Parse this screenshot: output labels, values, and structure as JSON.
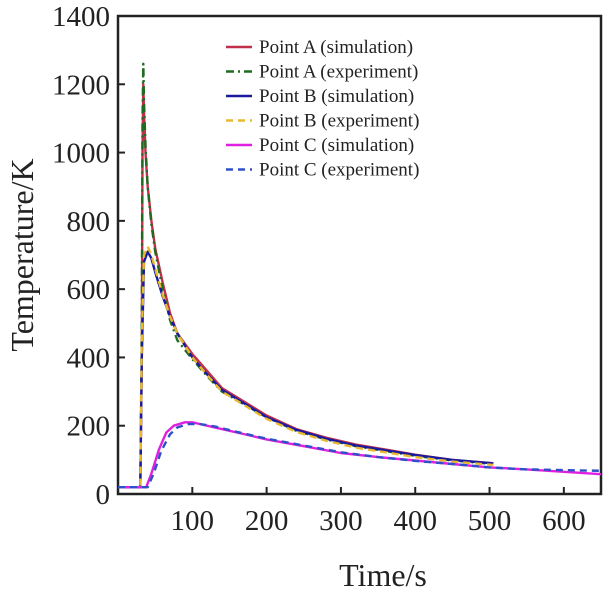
{
  "chart_data": {
    "type": "line",
    "title": "",
    "xlabel": "Time/s",
    "ylabel": "Temperature/K",
    "xlim": [
      0,
      650
    ],
    "ylim": [
      0,
      1400
    ],
    "xticks": [
      100,
      200,
      300,
      400,
      500,
      600
    ],
    "yticks": [
      0,
      200,
      400,
      600,
      800,
      1000,
      1200,
      1400
    ],
    "grid": false,
    "legend_position": "top-right",
    "series": [
      {
        "name": "Point A (simulation)",
        "color": "#c0304a",
        "dash": "solid",
        "x": [
          0,
          30,
          32,
          33,
          34,
          35,
          37,
          40,
          45,
          50,
          60,
          70,
          80,
          100,
          120,
          140,
          170,
          200,
          240,
          280,
          320,
          360,
          400,
          450,
          505
        ],
        "y": [
          20,
          20,
          400,
          1000,
          1200,
          1120,
          1000,
          900,
          800,
          720,
          620,
          530,
          470,
          410,
          360,
          310,
          270,
          230,
          190,
          165,
          145,
          130,
          115,
          100,
          90
        ]
      },
      {
        "name": "Point A (experiment)",
        "color": "#1f6b1f",
        "dash": "dashdot",
        "x": [
          0,
          30,
          32,
          33,
          34,
          35,
          37,
          40,
          45,
          50,
          60,
          70,
          80,
          100,
          120,
          140,
          170,
          200,
          240,
          280,
          320,
          360,
          400,
          450,
          505
        ],
        "y": [
          20,
          20,
          500,
          1100,
          1260,
          1150,
          1020,
          900,
          790,
          710,
          600,
          510,
          450,
          395,
          345,
          300,
          262,
          225,
          185,
          160,
          140,
          126,
          112,
          98,
          88
        ]
      },
      {
        "name": "Point B (simulation)",
        "color": "#1a1aa0",
        "dash": "solid",
        "x": [
          0,
          30,
          32,
          35,
          40,
          45,
          50,
          60,
          70,
          80,
          100,
          120,
          140,
          170,
          200,
          240,
          280,
          320,
          360,
          400,
          450,
          505
        ],
        "y": [
          20,
          20,
          400,
          680,
          710,
          690,
          650,
          580,
          520,
          470,
          400,
          350,
          305,
          265,
          225,
          188,
          162,
          142,
          128,
          114,
          100,
          90
        ]
      },
      {
        "name": "Point B (experiment)",
        "color": "#e8b830",
        "dash": "dashed",
        "x": [
          0,
          30,
          32,
          35,
          40,
          45,
          50,
          60,
          70,
          80,
          100,
          120,
          140,
          170,
          200,
          240,
          280,
          320,
          360,
          400,
          450,
          505
        ],
        "y": [
          20,
          20,
          450,
          700,
          725,
          700,
          660,
          585,
          520,
          470,
          400,
          348,
          300,
          260,
          220,
          182,
          156,
          136,
          122,
          108,
          95,
          85
        ]
      },
      {
        "name": "Point C (simulation)",
        "color": "#e020e0",
        "dash": "solid",
        "x": [
          0,
          38,
          45,
          55,
          65,
          75,
          90,
          100,
          110,
          130,
          160,
          200,
          250,
          300,
          350,
          400,
          450,
          500,
          550,
          600,
          650
        ],
        "y": [
          20,
          20,
          60,
          130,
          180,
          200,
          210,
          210,
          205,
          195,
          180,
          160,
          140,
          120,
          108,
          98,
          88,
          78,
          72,
          65,
          58
        ]
      },
      {
        "name": "Point C (experiment)",
        "color": "#3050c8",
        "dash": "dashed",
        "x": [
          0,
          40,
          48,
          58,
          70,
          80,
          95,
          110,
          130,
          160,
          200,
          250,
          300,
          350,
          400,
          450,
          500,
          550,
          600,
          650
        ],
        "y": [
          20,
          20,
          60,
          125,
          175,
          195,
          205,
          205,
          198,
          182,
          162,
          142,
          122,
          108,
          97,
          88,
          78,
          72,
          70,
          68
        ]
      }
    ]
  }
}
